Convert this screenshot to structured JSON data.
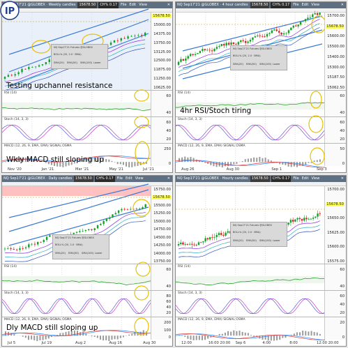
{
  "panes": [
    {
      "title": {
        "symbol": "NQ Sep17'21 @GLOBEX · Weekly candles",
        "price": "15678.50",
        "change": "CH% 0.17",
        "menu": [
          "File",
          "Edit",
          "View"
        ]
      },
      "legend": {
        "title": "NQ Sep17'21 Futures @GLOBEX",
        "bands": "BOLL% (20, 2.0 · BMA)",
        "ma": [
          "SMA(20)",
          "EMA(50)",
          "SMA(100)",
          "Lower"
        ]
      },
      "price_axis": [
        "15678.50",
        "15000.00",
        "14375.00",
        "13750.00",
        "13125.00",
        "12500.00",
        "11875.00",
        "11250.00",
        "10625.00"
      ],
      "annotation": "Testing upchannel resistance",
      "rsi": {
        "title": "RSI (14)",
        "axis": [
          "60",
          "40"
        ]
      },
      "stoch": {
        "title": "Stoch (14, 3, 3)",
        "axis": [
          "60",
          "40",
          "20"
        ]
      },
      "macd": {
        "title": "MACD (12, 26, 9, EMA, EMA)  SIGNAL  OSMA",
        "axis": [
          "250",
          "0"
        ],
        "annotation": "Wkly MACD still sloping up"
      },
      "x_axis": [
        "Nov '20",
        "Jan '21",
        "Mar '21",
        "May '21",
        "Jul '21"
      ]
    },
    {
      "title": {
        "symbol": "NQ Sep17'21 @GLOBEX · 4 hour candles",
        "price": "15678.50",
        "change": "CH% 0.17",
        "menu": [
          "File",
          "Edit",
          "View"
        ]
      },
      "legend": {
        "title": "NQ Sep17'21 Futures @GLOBEX",
        "bands": "BOLL% (20, 2.0 · BMA)",
        "ma": [
          "SMA(20)",
          "EMA(50)",
          "SMA(100)",
          "Lower"
        ]
      },
      "price_axis": [
        "15700.00",
        "15678.50",
        "15600.00",
        "15500.00",
        "15400.00",
        "15300.00",
        "15187.50",
        "15062.50"
      ],
      "annotation": "4hr RSI/Stoch tiring",
      "rsi": {
        "title": "RSI (14)",
        "axis": [
          "60",
          "40"
        ]
      },
      "stoch": {
        "title": "Stoch (14, 3, 3)",
        "axis": [
          "60",
          "40",
          "20"
        ]
      },
      "macd": {
        "title": "MACD (12, 26, 9, EMA, EMA)  SIGNAL  OSMA",
        "axis": [
          "50",
          "0"
        ]
      },
      "x_axis": [
        "Aug 26",
        "Aug 30",
        "Sep 1",
        "Sep 3"
      ]
    },
    {
      "title": {
        "symbol": "NQ Sep17'21 @GLOBEX · Daily candles",
        "price": "15678.50",
        "change": "CH% 0.17",
        "menu": [
          "File",
          "Edit",
          "View"
        ]
      },
      "legend": {
        "title": "NQ Sep17'21 Futures @GLOBEX",
        "bands": "BOLL% (20, 2.0 · BMA)",
        "ma": [
          "SMA(20)",
          "EMA(50)",
          "SMA(100)",
          "Lower"
        ]
      },
      "price_axis": [
        "15750.00",
        "15678.50",
        "15500.00",
        "15250.00",
        "15000.00",
        "14750.00",
        "14500.00",
        "14250.00",
        "14000.00",
        "13750.00"
      ],
      "rsi": {
        "title": "RSI (14)",
        "axis": [
          "60",
          "40"
        ]
      },
      "stoch": {
        "title": "Stoch (14, 3, 3)",
        "axis": [
          "80",
          "60",
          "40",
          "20"
        ]
      },
      "macd": {
        "title": "MACD (12, 26, 9, EMA, EMA)  SIGNAL  OSMA",
        "axis": [
          "200",
          "100",
          "0"
        ],
        "annotation": "Dly MACD still sloping up"
      },
      "x_axis": [
        "Jul 5",
        "Jul 19",
        "Aug 2",
        "Aug 16",
        "Aug 30"
      ]
    },
    {
      "title": {
        "symbol": "NQ Sep17'21 @GLOBEX · Hourly candles",
        "price": "15678.50",
        "change": "CH% 0.17",
        "menu": [
          "File",
          "Edit",
          "View"
        ]
      },
      "legend": {
        "title": "NQ Sep17'21 Futures @GLOBEX",
        "bands": "BOLL% (20, 2.0 · BMA)",
        "ma": [
          "SMA(20)",
          "EMA(50)",
          "SMA(100)",
          "Lower"
        ]
      },
      "price_axis": [
        "15700.00",
        "15678.50",
        "15650.00",
        "15625.00",
        "15600.00",
        "15575.00"
      ],
      "rsi": {
        "title": "RSI (14)",
        "axis": [
          "60",
          "40"
        ]
      },
      "stoch": {
        "title": "Stoch (14, 3, 3)",
        "axis": [
          "60",
          "40",
          "20"
        ]
      },
      "macd": {
        "title": "MACD (12, 26, 9, EMA, EMA)  SIGNAL  OSMA",
        "axis": [
          "20",
          "0"
        ]
      },
      "x_axis": [
        "12:00",
        "16:00 20:00",
        "Sep 6",
        "4:00",
        "8:00",
        "12:00 20:00"
      ]
    }
  ],
  "colors": {
    "up": "#15a02a",
    "down": "#d42020",
    "channel": "#3a7ad8",
    "circle": "#e8c000",
    "rsi": "#27a02a",
    "stoch": "#c03bd0",
    "macd": "#2a8aff",
    "signal": "#e03a3a",
    "osma": "#999999"
  },
  "logo": {
    "text": "IP",
    "name": "ip-logo"
  }
}
